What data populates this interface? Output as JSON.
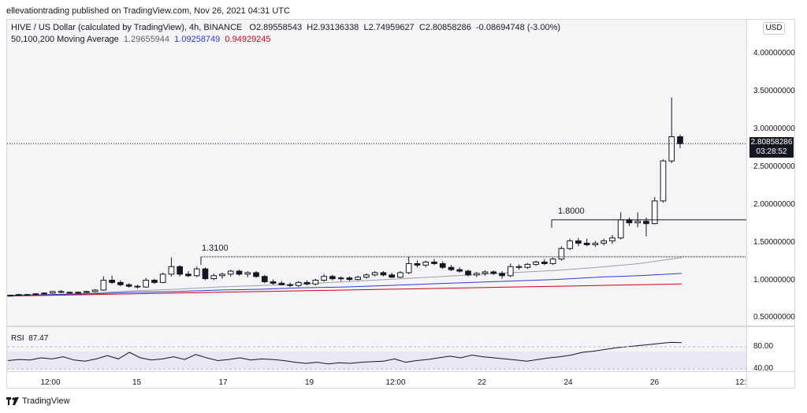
{
  "publish_text": "ellevationtrading published on TradingView.com, Nov 26, 2021 04:31 UTC",
  "header": {
    "symbol": "HIVE / US Dollar (calculated by TradingView), 4h, BINANCE",
    "o_label": "O",
    "o": "2.89558543",
    "h_label": "H",
    "h": "2.93136338",
    "l_label": "L",
    "l": "2.74959627",
    "c_label": "C",
    "c": "2.80858286",
    "change": "-0.08694748 (-3.00%)",
    "ma_label": "50,100,200 Moving Average",
    "ma50": "1.29655944",
    "ma100": "1.09258749",
    "ma200": "0.94929245"
  },
  "currency_badge": "USD",
  "price_badge": {
    "price": "2.80858286",
    "countdown": "03:28:52"
  },
  "rsi": {
    "label": "RSI",
    "value": "87.47",
    "levels": [
      "80.00",
      "40.00"
    ]
  },
  "footer": {
    "brand": "TradingView"
  },
  "colors": {
    "ma50": "#9aa0a6",
    "ma100": "#2a3cd6",
    "ma200": "#d0021b",
    "line": "#131722"
  },
  "chart_data": {
    "type": "candlestick",
    "y_ticks": [
      "4.00000000",
      "3.50000000",
      "3.00000000",
      "2.50000000",
      "2.00000000",
      "1.50000000",
      "1.00000000",
      "0.50000000"
    ],
    "ylim": [
      0.4,
      4.45
    ],
    "x_ticks": [
      "12:00",
      "15",
      "17",
      "19",
      "12:00",
      "22",
      "24",
      "26",
      "12:"
    ],
    "annotations": [
      {
        "text": "1.3100",
        "value": 1.31
      },
      {
        "text": "1.8000",
        "value": 1.8
      }
    ],
    "current_price": 2.80858286,
    "candles": [
      [
        0.8,
        0.81,
        0.79,
        0.8
      ],
      [
        0.8,
        0.82,
        0.79,
        0.81
      ],
      [
        0.81,
        0.82,
        0.8,
        0.81
      ],
      [
        0.81,
        0.83,
        0.8,
        0.82
      ],
      [
        0.82,
        0.84,
        0.81,
        0.83
      ],
      [
        0.83,
        0.86,
        0.82,
        0.85
      ],
      [
        0.85,
        0.87,
        0.83,
        0.84
      ],
      [
        0.84,
        0.85,
        0.82,
        0.83
      ],
      [
        0.83,
        0.85,
        0.82,
        0.84
      ],
      [
        0.84,
        0.86,
        0.83,
        0.85
      ],
      [
        0.85,
        0.88,
        0.84,
        0.87
      ],
      [
        0.87,
        1.05,
        0.86,
        1.0
      ],
      [
        1.0,
        1.06,
        0.95,
        0.97
      ],
      [
        0.97,
        1.0,
        0.92,
        0.94
      ],
      [
        0.94,
        0.96,
        0.9,
        0.92
      ],
      [
        0.92,
        0.94,
        0.89,
        0.91
      ],
      [
        0.91,
        1.03,
        0.9,
        1.0
      ],
      [
        1.0,
        1.02,
        0.95,
        0.97
      ],
      [
        0.97,
        1.1,
        0.96,
        1.08
      ],
      [
        1.08,
        1.3,
        1.05,
        1.18
      ],
      [
        1.18,
        1.2,
        1.05,
        1.08
      ],
      [
        1.08,
        1.12,
        1.04,
        1.06
      ],
      [
        1.06,
        1.18,
        1.04,
        1.15
      ],
      [
        1.15,
        1.17,
        1.0,
        1.02
      ],
      [
        1.02,
        1.09,
        1.0,
        1.06
      ],
      [
        1.06,
        1.1,
        1.02,
        1.08
      ],
      [
        1.08,
        1.14,
        1.05,
        1.12
      ],
      [
        1.12,
        1.14,
        1.06,
        1.08
      ],
      [
        1.08,
        1.12,
        1.04,
        1.1
      ],
      [
        1.1,
        1.12,
        1.03,
        1.05
      ],
      [
        1.05,
        1.07,
        0.96,
        0.98
      ],
      [
        0.98,
        1.01,
        0.94,
        0.96
      ],
      [
        0.96,
        0.99,
        0.93,
        0.94
      ],
      [
        0.94,
        0.97,
        0.91,
        0.93
      ],
      [
        0.93,
        0.99,
        0.91,
        0.97
      ],
      [
        0.97,
        1.0,
        0.93,
        0.95
      ],
      [
        0.95,
        1.02,
        0.93,
        1.0
      ],
      [
        1.0,
        1.08,
        0.98,
        1.05
      ],
      [
        1.05,
        1.07,
        1.0,
        1.02
      ],
      [
        1.02,
        1.05,
        0.99,
        1.03
      ],
      [
        1.03,
        1.05,
        0.99,
        1.01
      ],
      [
        1.01,
        1.06,
        1.0,
        1.04
      ],
      [
        1.04,
        1.09,
        1.02,
        1.07
      ],
      [
        1.07,
        1.12,
        1.05,
        1.1
      ],
      [
        1.1,
        1.12,
        1.05,
        1.07
      ],
      [
        1.07,
        1.1,
        1.03,
        1.04
      ],
      [
        1.04,
        1.12,
        1.03,
        1.1
      ],
      [
        1.1,
        1.31,
        1.08,
        1.22
      ],
      [
        1.22,
        1.26,
        1.17,
        1.2
      ],
      [
        1.2,
        1.26,
        1.17,
        1.24
      ],
      [
        1.24,
        1.28,
        1.2,
        1.22
      ],
      [
        1.22,
        1.25,
        1.15,
        1.17
      ],
      [
        1.17,
        1.2,
        1.12,
        1.14
      ],
      [
        1.14,
        1.17,
        1.1,
        1.12
      ],
      [
        1.12,
        1.14,
        1.05,
        1.07
      ],
      [
        1.07,
        1.11,
        1.04,
        1.09
      ],
      [
        1.09,
        1.13,
        1.06,
        1.11
      ],
      [
        1.11,
        1.13,
        1.07,
        1.09
      ],
      [
        1.09,
        1.12,
        1.02,
        1.06
      ],
      [
        1.06,
        1.22,
        1.04,
        1.18
      ],
      [
        1.18,
        1.21,
        1.14,
        1.17
      ],
      [
        1.17,
        1.23,
        1.15,
        1.21
      ],
      [
        1.21,
        1.26,
        1.19,
        1.24
      ],
      [
        1.24,
        1.28,
        1.2,
        1.22
      ],
      [
        1.22,
        1.3,
        1.2,
        1.28
      ],
      [
        1.28,
        1.45,
        1.26,
        1.42
      ],
      [
        1.42,
        1.55,
        1.4,
        1.52
      ],
      [
        1.52,
        1.56,
        1.45,
        1.49
      ],
      [
        1.49,
        1.55,
        1.45,
        1.47
      ],
      [
        1.47,
        1.52,
        1.44,
        1.49
      ],
      [
        1.49,
        1.55,
        1.46,
        1.52
      ],
      [
        1.52,
        1.6,
        1.48,
        1.56
      ],
      [
        1.56,
        1.9,
        1.54,
        1.8
      ],
      [
        1.8,
        1.83,
        1.72,
        1.76
      ],
      [
        1.76,
        1.9,
        1.7,
        1.78
      ],
      [
        1.78,
        1.83,
        1.58,
        1.75
      ],
      [
        1.75,
        2.1,
        1.74,
        2.05
      ],
      [
        2.05,
        2.6,
        2.03,
        2.58
      ],
      [
        2.58,
        3.42,
        2.55,
        2.9
      ],
      [
        2.9,
        2.93,
        2.75,
        2.81
      ]
    ],
    "series": [
      {
        "name": "MA50",
        "values": [
          0.8,
          0.81,
          0.83,
          0.86,
          0.88,
          0.91,
          0.93,
          0.95,
          0.98,
          1.01,
          1.04,
          1.07,
          1.1,
          1.13,
          1.17,
          1.22,
          1.3
        ]
      },
      {
        "name": "MA100",
        "values": [
          0.8,
          0.81,
          0.82,
          0.84,
          0.85,
          0.87,
          0.88,
          0.9,
          0.91,
          0.93,
          0.95,
          0.97,
          0.99,
          1.01,
          1.04,
          1.06,
          1.09
        ]
      },
      {
        "name": "MA200",
        "values": [
          0.79,
          0.8,
          0.81,
          0.82,
          0.83,
          0.84,
          0.85,
          0.86,
          0.87,
          0.88,
          0.89,
          0.9,
          0.91,
          0.92,
          0.93,
          0.94,
          0.95
        ]
      }
    ],
    "rsi_values": [
      55,
      57,
      56,
      60,
      58,
      62,
      56,
      54,
      58,
      64,
      58,
      70,
      60,
      56,
      58,
      62,
      57,
      66,
      60,
      55,
      57,
      60,
      56,
      58,
      57,
      55,
      52,
      50,
      52,
      49,
      51,
      50,
      52,
      53,
      54,
      58,
      52,
      55,
      57,
      60,
      63,
      60,
      65,
      62,
      60,
      58,
      56,
      54,
      57,
      60,
      62,
      65,
      70,
      72,
      75,
      78,
      80,
      82,
      84,
      86,
      88,
      87.47
    ]
  }
}
